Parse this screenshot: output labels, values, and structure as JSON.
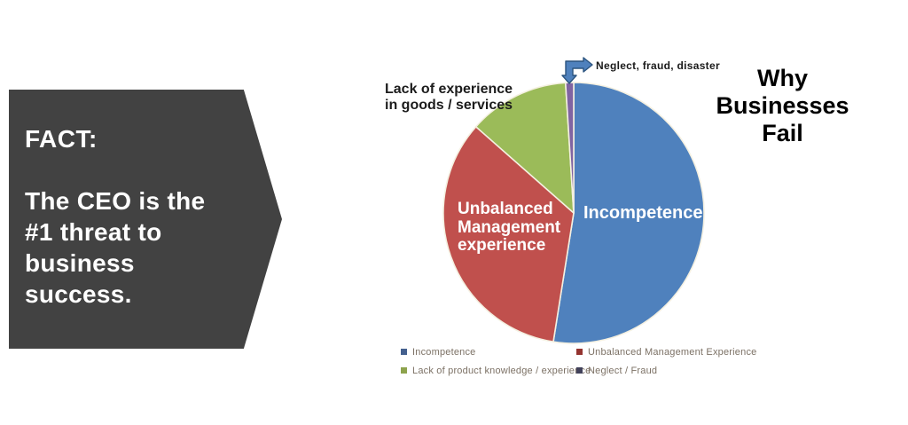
{
  "fact_box": {
    "heading": "FACT:",
    "body": "The CEO is the\n#1 threat to\nbusiness\nsuccess.",
    "bg_color": "#424242",
    "text_color": "#ffffff"
  },
  "chart_data": {
    "type": "pie",
    "title": "Why Businesses Fail",
    "direction": "clockwise",
    "start_angle_deg": 0,
    "slice_border_color": "#f4f0e1",
    "legend_position": "bottom-two-column",
    "slices": [
      {
        "label": "Incompetence",
        "value": 52.5,
        "color": "#4f81bd",
        "legend_label": "Incompetence",
        "legend_color": "#44608e"
      },
      {
        "label": "Unbalanced Management experience",
        "value": 34,
        "color": "#c0504d",
        "legend_label": "Unbalanced Management Experience",
        "legend_color": "#943430"
      },
      {
        "label": "Lack of experience in goods / services",
        "value": 12.5,
        "color": "#9bbb59",
        "legend_label": "Lack of product knowledge / experience",
        "legend_color": "#8da34d"
      },
      {
        "label": "Neglect, fraud, disaster",
        "value": 1,
        "color": "#8064a2",
        "legend_label": "Neglect / Fraud",
        "legend_color": "#41415a"
      }
    ]
  },
  "overlays": {
    "incompetence_label": "Incompetence",
    "unbalanced_label": "Unbalanced\nManagement\nexperience",
    "lack_label": "Lack of experience\nin goods / services",
    "neglect_callout": "Neglect, fraud, disaster"
  },
  "arrow": {
    "fill_color": "#4f81bd",
    "stroke_color": "#2c547f"
  }
}
